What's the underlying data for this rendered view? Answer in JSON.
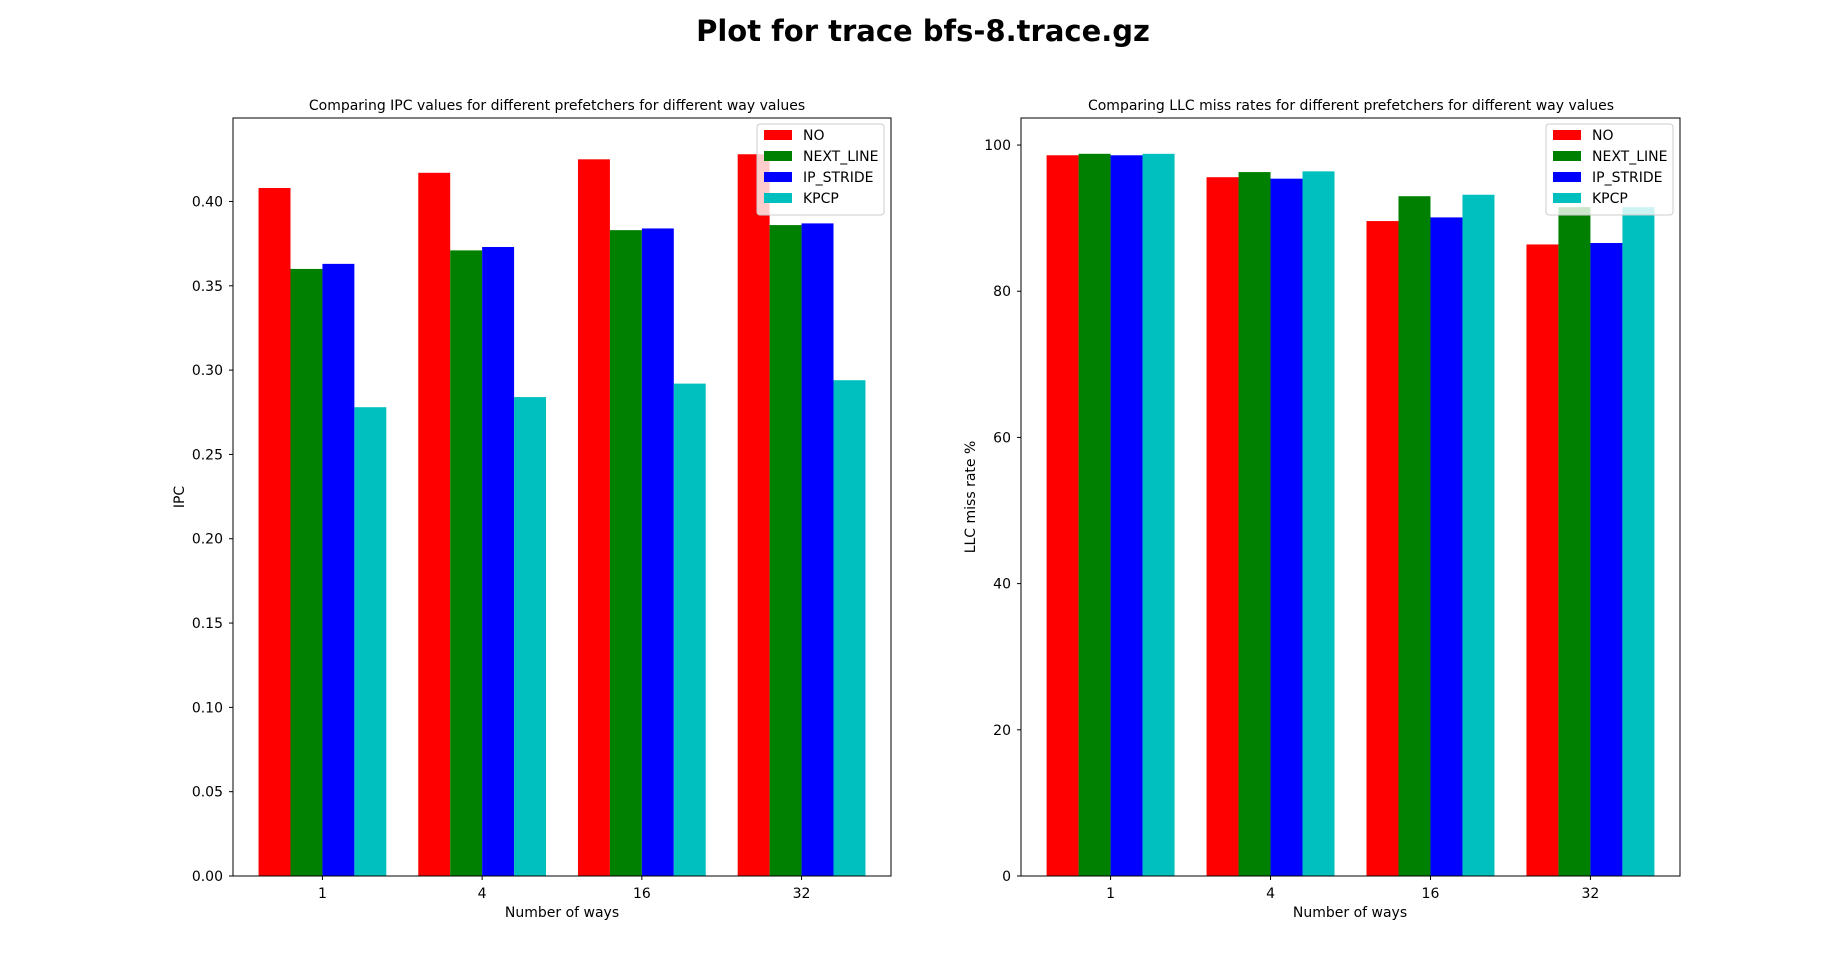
{
  "figure": {
    "suptitle": "Plot for trace bfs-8.trace.gz"
  },
  "chart_data": [
    {
      "type": "bar",
      "title": "Comparing IPC values for different prefetchers for different way values",
      "xlabel": "Number of ways",
      "ylabel": "IPC",
      "categories": [
        "1",
        "4",
        "16",
        "32"
      ],
      "ylim": [
        0,
        0.4495
      ],
      "yticks": [
        0.0,
        0.05,
        0.1,
        0.15,
        0.2,
        0.25,
        0.3,
        0.35,
        0.4
      ],
      "ytick_labels": [
        "0.00",
        "0.05",
        "0.10",
        "0.15",
        "0.20",
        "0.25",
        "0.30",
        "0.35",
        "0.40"
      ],
      "legend_position": "top-right",
      "grid": false,
      "series": [
        {
          "name": "NO",
          "color": "#ff0000",
          "values": [
            0.408,
            0.417,
            0.425,
            0.428
          ]
        },
        {
          "name": "NEXT_LINE",
          "color": "#008000",
          "values": [
            0.36,
            0.371,
            0.383,
            0.386
          ]
        },
        {
          "name": "IP_STRIDE",
          "color": "#0000ff",
          "values": [
            0.363,
            0.373,
            0.384,
            0.387
          ]
        },
        {
          "name": "KPCP",
          "color": "#00bfbf",
          "values": [
            0.278,
            0.284,
            0.292,
            0.294
          ]
        }
      ]
    },
    {
      "type": "bar",
      "title": "Comparing LLC miss rates for different prefetchers for different way values",
      "xlabel": "Number of ways",
      "ylabel": "LLC miss rate %",
      "categories": [
        "1",
        "4",
        "16",
        "32"
      ],
      "ylim": [
        0,
        103.7
      ],
      "yticks": [
        0,
        20,
        40,
        60,
        80,
        100
      ],
      "ytick_labels": [
        "0",
        "20",
        "40",
        "60",
        "80",
        "100"
      ],
      "legend_position": "top-right",
      "grid": false,
      "series": [
        {
          "name": "NO",
          "color": "#ff0000",
          "values": [
            98.6,
            95.6,
            89.6,
            86.4
          ]
        },
        {
          "name": "NEXT_LINE",
          "color": "#008000",
          "values": [
            98.8,
            96.3,
            93.0,
            91.5
          ]
        },
        {
          "name": "IP_STRIDE",
          "color": "#0000ff",
          "values": [
            98.6,
            95.4,
            90.1,
            86.6
          ]
        },
        {
          "name": "KPCP",
          "color": "#00bfbf",
          "values": [
            98.8,
            96.4,
            93.2,
            91.5
          ]
        }
      ]
    }
  ]
}
